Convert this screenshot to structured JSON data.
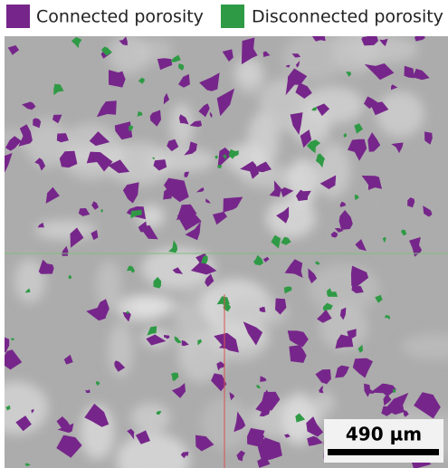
{
  "legend": {
    "items": [
      {
        "label": "Connected porosity",
        "color": "#76268a"
      },
      {
        "label": "Disconnected porosity",
        "color": "#2f9a45"
      }
    ]
  },
  "scale_bar": {
    "label": "490 µm"
  }
}
